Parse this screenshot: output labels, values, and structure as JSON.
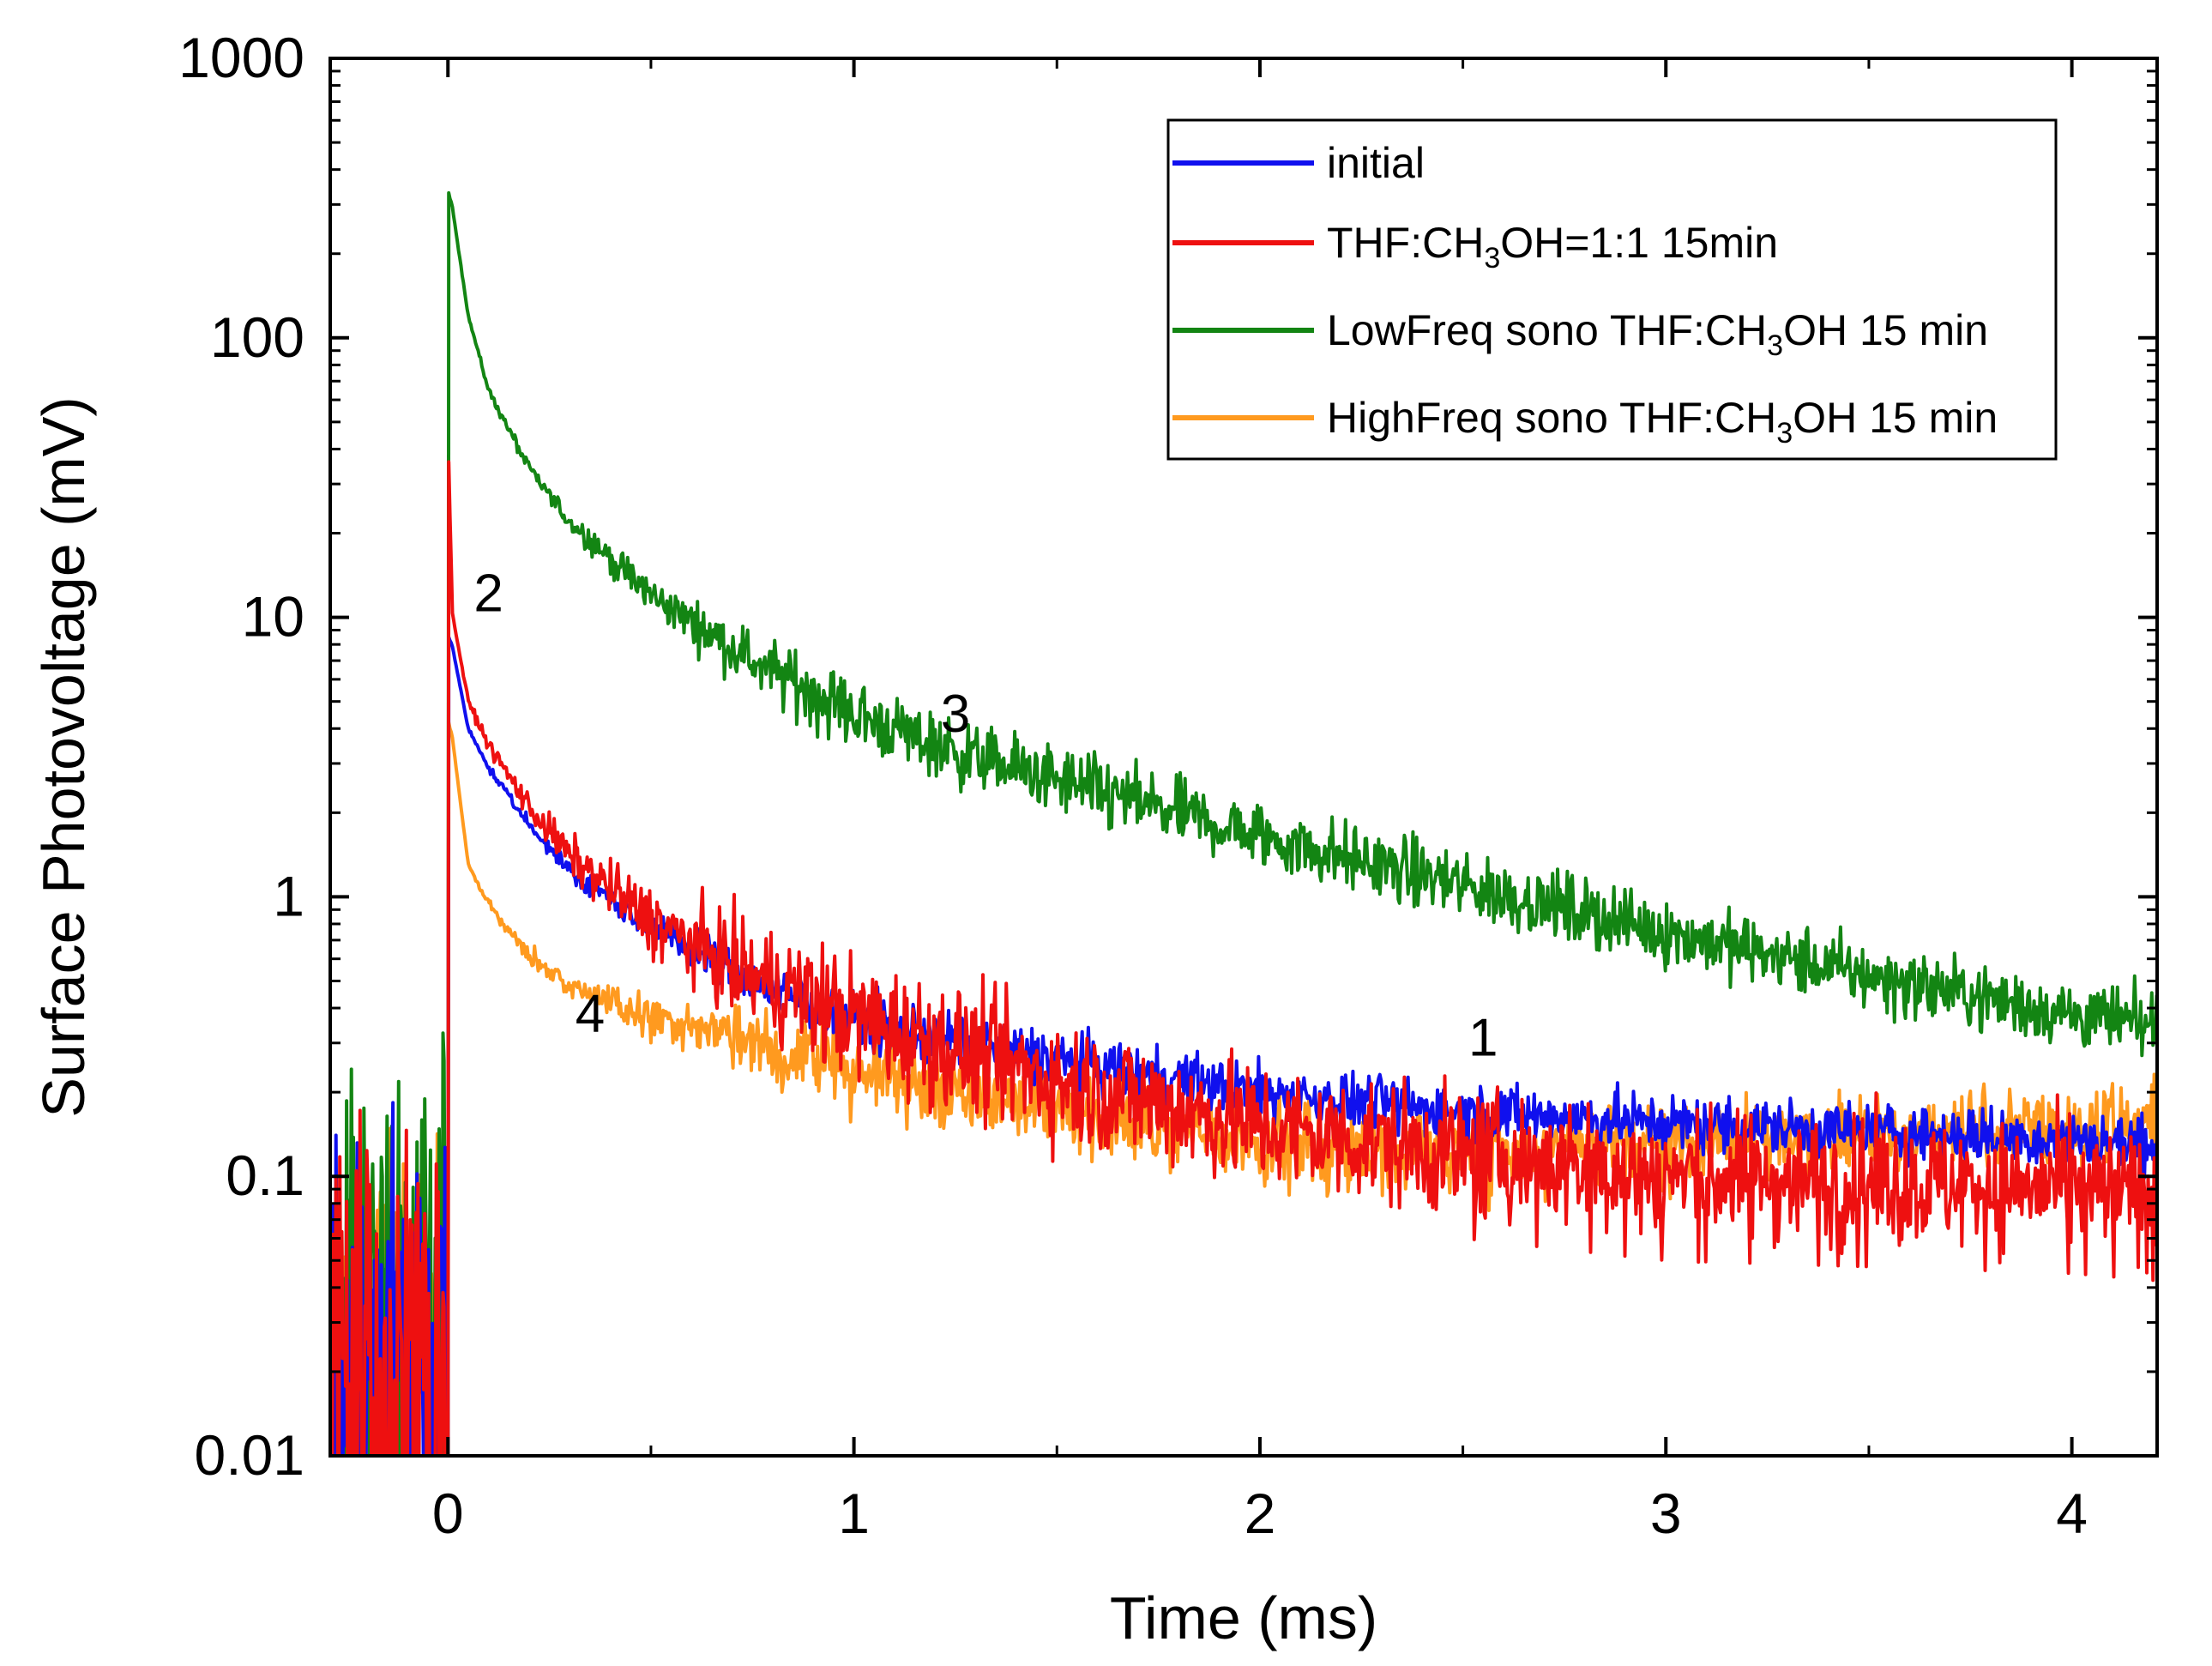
{
  "chart_data": {
    "type": "line",
    "xlabel": "Time (ms)",
    "ylabel": "Surface Photovoltage (mV)",
    "xlim": [
      -0.29,
      4.21
    ],
    "ylim": [
      0.01,
      1000
    ],
    "yscale": "log",
    "xticks": [
      {
        "value": 0,
        "label": "0"
      },
      {
        "value": 1,
        "label": "1"
      },
      {
        "value": 2,
        "label": "2"
      },
      {
        "value": 3,
        "label": "3"
      },
      {
        "value": 4,
        "label": "4"
      }
    ],
    "yticks": [
      {
        "value": 0.01,
        "label": "0.01"
      },
      {
        "value": 0.1,
        "label": "0.1"
      },
      {
        "value": 1,
        "label": "1"
      },
      {
        "value": 10,
        "label": "10"
      },
      {
        "value": 100,
        "label": "100"
      },
      {
        "value": 1000,
        "label": "1000"
      }
    ],
    "legend_position": "top-right",
    "series": [
      {
        "name": "initial",
        "legend_main": "initial",
        "legend_sub": "",
        "legend_tail": "",
        "color": "#1010ee",
        "peak": 8.5,
        "baseline": 0.03,
        "noise": 0.1,
        "x": [
          0.01,
          0.05,
          0.1,
          0.2,
          0.3,
          0.5,
          0.75,
          1.0,
          1.5,
          2.0,
          2.5,
          3.0,
          3.5,
          4.0,
          4.2
        ],
        "y": [
          8.0,
          4.0,
          2.9,
          1.8,
          1.25,
          0.78,
          0.5,
          0.36,
          0.26,
          0.2,
          0.17,
          0.155,
          0.145,
          0.135,
          0.13
        ]
      },
      {
        "name": "THF:CH3OH=1:1 15min",
        "legend_main": "THF:CH",
        "legend_sub": "3",
        "legend_tail": "OH=1:1 15min",
        "color": "#ee1010",
        "peak": 36,
        "baseline": 0.03,
        "noise": 0.22,
        "x": [
          0.01,
          0.05,
          0.1,
          0.2,
          0.3,
          0.5,
          0.75,
          1.0,
          1.5,
          2.0,
          2.5,
          3.0,
          3.5,
          4.0,
          4.2
        ],
        "y": [
          10.5,
          5.0,
          3.5,
          2.1,
          1.4,
          0.82,
          0.52,
          0.37,
          0.22,
          0.15,
          0.12,
          0.1,
          0.095,
          0.09,
          0.085
        ]
      },
      {
        "name": "LowFreq sono THF:CH3OH 15 min",
        "legend_main": "LowFreq sono THF:CH",
        "legend_sub": "3",
        "legend_tail": "OH 15 min",
        "color": "#138513",
        "peak": 330,
        "baseline": 0.05,
        "noise": 0.12,
        "x": [
          0.01,
          0.05,
          0.1,
          0.2,
          0.3,
          0.5,
          0.75,
          1.0,
          1.25,
          1.5,
          2.0,
          2.5,
          3.0,
          3.5,
          4.0,
          4.2
        ],
        "y": [
          300,
          120,
          65,
          34,
          22,
          12,
          7.0,
          4.5,
          3.3,
          2.6,
          1.65,
          1.1,
          0.75,
          0.52,
          0.38,
          0.34
        ]
      },
      {
        "name": "HighFreq sono THF:CH3OH 15 min",
        "legend_main": "HighFreq sono THF:CH",
        "legend_sub": "3",
        "legend_tail": "OH 15 min",
        "color": "#ff9a1f",
        "peak": 4.2,
        "baseline": 0.03,
        "noise": 0.14,
        "x": [
          0.01,
          0.05,
          0.1,
          0.2,
          0.3,
          0.5,
          0.75,
          1.0,
          1.5,
          2.0,
          2.5,
          3.0,
          3.5,
          4.0,
          4.2
        ],
        "y": [
          3.8,
          1.3,
          0.95,
          0.62,
          0.48,
          0.37,
          0.3,
          0.24,
          0.17,
          0.13,
          0.12,
          0.13,
          0.14,
          0.15,
          0.155
        ]
      }
    ],
    "annotations": [
      {
        "text": "1",
        "x": 2.55,
        "y": 0.27
      },
      {
        "text": "2",
        "x": 0.1,
        "y": 10.5
      },
      {
        "text": "3",
        "x": 1.25,
        "y": 3.9
      },
      {
        "text": "4",
        "x": 0.35,
        "y": 0.33
      }
    ]
  }
}
